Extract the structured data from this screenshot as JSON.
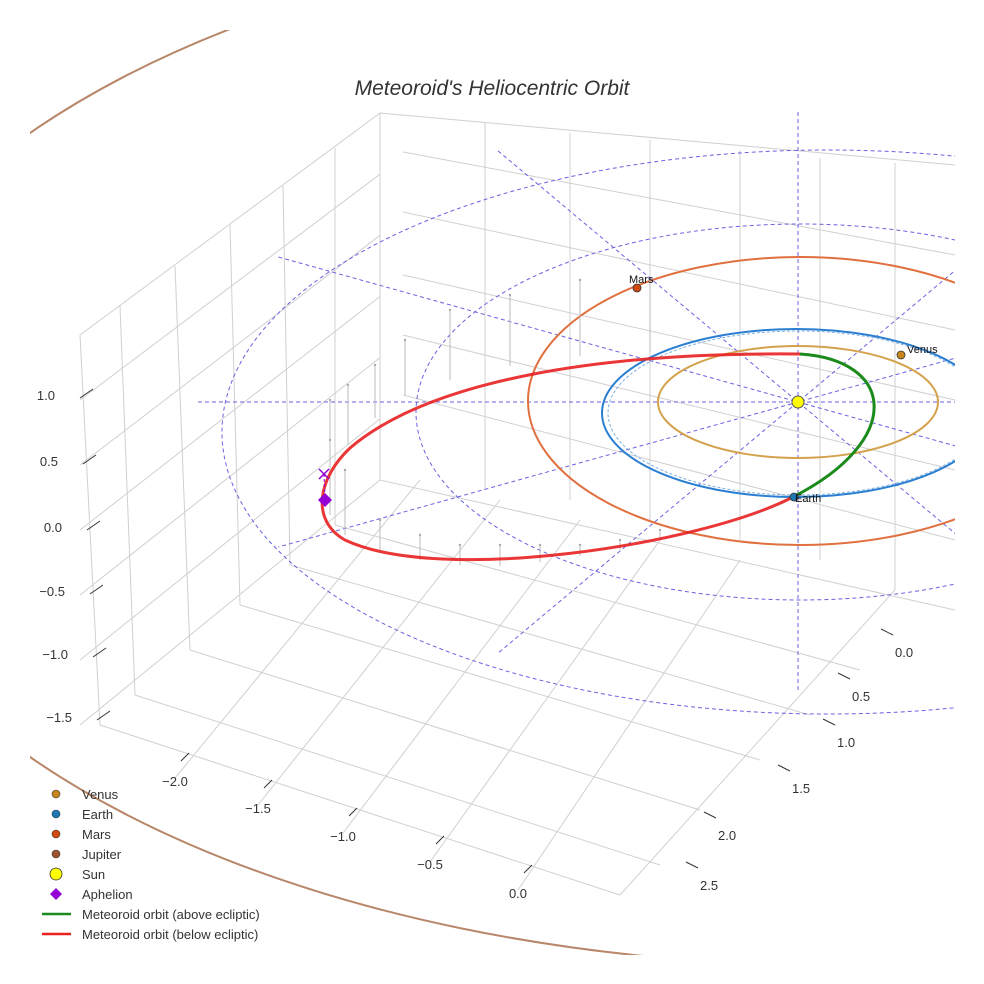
{
  "chart_data": {
    "type": "scatter3d",
    "title": "Meteoroid's Heliocentric Orbit",
    "axes": {
      "x_ticks": [
        "−2.0",
        "−1.5",
        "−1.0",
        "−0.5",
        "0.0"
      ],
      "y_ticks": [
        "0.0",
        "0.5",
        "1.0",
        "1.5",
        "2.0",
        "2.5"
      ],
      "z_ticks": [
        "1.0",
        "0.5",
        "0.0",
        "−0.5",
        "−1.0",
        "−1.5"
      ],
      "grid": true
    },
    "planet_labels": {
      "mars": "Mars",
      "venus": "Venus",
      "earth": "Earth"
    },
    "legend": {
      "placement": "bottom-left",
      "items": [
        {
          "label": "Venus",
          "color": "#c8861a",
          "symbol": "circle"
        },
        {
          "label": "Earth",
          "color": "#1f77b4",
          "symbol": "circle"
        },
        {
          "label": "Mars",
          "color": "#d14a12",
          "symbol": "circle"
        },
        {
          "label": "Jupiter",
          "color": "#a0522d",
          "symbol": "circle"
        },
        {
          "label": "Sun",
          "color": "#ffff00",
          "symbol": "circle-large"
        },
        {
          "label": "Aphelion",
          "color": "#9400d3",
          "symbol": "diamond"
        },
        {
          "label": "Meteoroid orbit (above ecliptic)",
          "color": "#1a8a1a",
          "symbol": "line"
        },
        {
          "label": "Meteoroid orbit (below ecliptic)",
          "color": "#e82020",
          "symbol": "line"
        }
      ]
    },
    "orbit_colors": {
      "venus": "#d4a24c",
      "earth": "#2b7fd1",
      "mars": "#e0703f",
      "jupiter": "#b8876a",
      "grid_lines": "#6a63e0"
    }
  }
}
